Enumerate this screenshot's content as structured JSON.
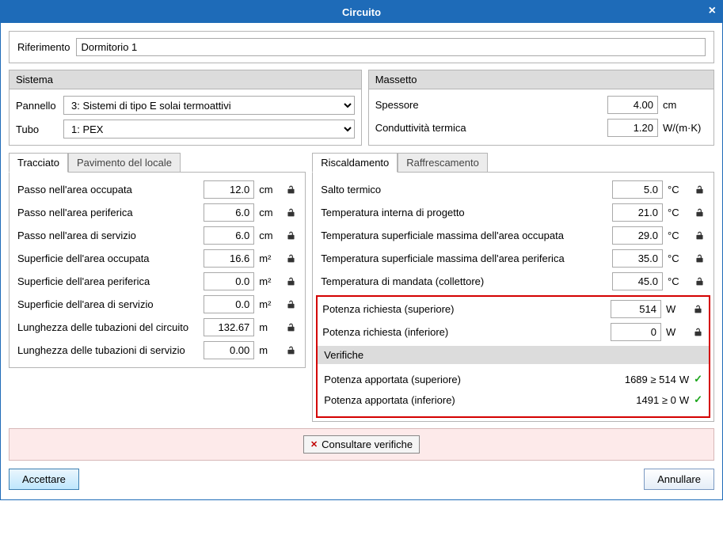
{
  "title": "Circuito",
  "ref": {
    "label": "Riferimento",
    "value": "Dormitorio 1"
  },
  "sistema": {
    "title": "Sistema",
    "pannello_label": "Pannello",
    "pannello_value": "3: Sistemi di tipo E solai termoattivi",
    "tubo_label": "Tubo",
    "tubo_value": "1: PEX"
  },
  "massetto": {
    "title": "Massetto",
    "spessore_label": "Spessore",
    "spessore_value": "4.00",
    "spessore_unit": "cm",
    "conduttivita_label": "Conduttività termica",
    "conduttivita_value": "1.20",
    "conduttivita_unit": "W/(m·K)"
  },
  "tabset_left": {
    "tab1": "Tracciato",
    "tab2": "Pavimento del locale"
  },
  "tracciato": {
    "rows": [
      {
        "label": "Passo nell'area occupata",
        "value": "12.0",
        "unit": "cm",
        "lock": true
      },
      {
        "label": "Passo nell'area periferica",
        "value": "6.0",
        "unit": "cm",
        "lock": true
      },
      {
        "label": "Passo nell'area di servizio",
        "value": "6.0",
        "unit": "cm",
        "lock": true
      },
      {
        "label": "Superficie dell'area occupata",
        "value": "16.6",
        "unit": "m²",
        "lock": true
      },
      {
        "label": "Superficie dell'area periferica",
        "value": "0.0",
        "unit": "m²",
        "lock": true
      },
      {
        "label": "Superficie dell'area di servizio",
        "value": "0.0",
        "unit": "m²",
        "lock": true
      },
      {
        "label": "Lunghezza delle tubazioni del circuito",
        "value": "132.67",
        "unit": "m",
        "lock": true
      },
      {
        "label": "Lunghezza delle tubazioni di servizio",
        "value": "0.00",
        "unit": "m",
        "lock": true
      }
    ]
  },
  "tabset_right": {
    "tab1": "Riscaldamento",
    "tab2": "Raffrescamento"
  },
  "riscaldamento": {
    "rows_top": [
      {
        "label": "Salto termico",
        "value": "5.0",
        "unit": "°C",
        "lock": true
      },
      {
        "label": "Temperatura interna di progetto",
        "value": "21.0",
        "unit": "°C",
        "lock": true
      },
      {
        "label": "Temperatura superficiale massima dell'area occupata",
        "value": "29.0",
        "unit": "°C",
        "lock": true
      },
      {
        "label": "Temperatura superficiale massima dell'area periferica",
        "value": "35.0",
        "unit": "°C",
        "lock": true
      },
      {
        "label": "Temperatura di mandata (collettore)",
        "value": "45.0",
        "unit": "°C",
        "lock": true
      }
    ],
    "rows_red": [
      {
        "label": "Potenza richiesta (superiore)",
        "value": "514",
        "unit": "W",
        "lock": true
      },
      {
        "label": "Potenza richiesta (inferiore)",
        "value": "0",
        "unit": "W",
        "lock": true
      }
    ],
    "verifiche_title": "Verifiche",
    "verifiche": [
      {
        "label": "Potenza apportata (superiore)",
        "value": "1689 ≥ 514",
        "unit": "W",
        "ok": true
      },
      {
        "label": "Potenza apportata (inferiore)",
        "value": "1491 ≥ 0",
        "unit": "W",
        "ok": true
      }
    ]
  },
  "consult_label": "Consultare verifiche",
  "accept_label": "Accettare",
  "cancel_label": "Annullare"
}
